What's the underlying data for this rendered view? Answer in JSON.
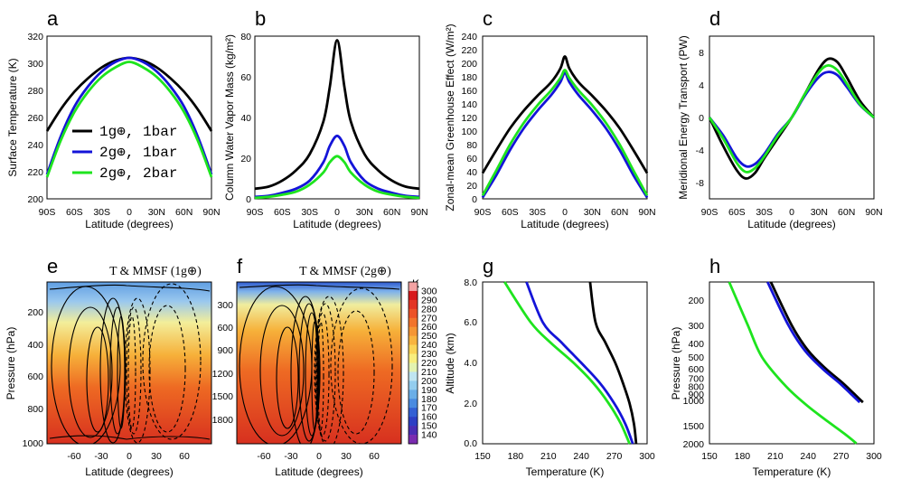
{
  "colors": {
    "black": "#000000",
    "blue": "#1414d8",
    "green": "#1ee41e"
  },
  "legend": [
    "1g⊕, 1bar",
    "2g⊕, 1bar",
    "2g⊕, 2bar"
  ],
  "panels": {
    "a": {
      "label": "a",
      "ylabel": "Surface Temperature (K)",
      "xlabel": "Latitude (degrees)",
      "yticks": [
        "320",
        "300",
        "280",
        "260",
        "240",
        "220",
        "200"
      ]
    },
    "b": {
      "label": "b",
      "ylabel": "Column Water Vapor Mass (kg/m²)",
      "xlabel": "Latitude (degrees)",
      "yticks": [
        "80",
        "60",
        "40",
        "20",
        "0"
      ]
    },
    "c": {
      "label": "c",
      "ylabel": "Zonal-mean Greenhouse Effect (W/m²)",
      "xlabel": "Latitude (degrees)",
      "yticks": [
        "240",
        "220",
        "200",
        "180",
        "160",
        "140",
        "120",
        "100",
        "80",
        "60",
        "40",
        "20",
        "0"
      ]
    },
    "d": {
      "label": "d",
      "ylabel": "Meridional Energy Transport (PW)",
      "xlabel": "Latitude (degrees)",
      "yticks": [
        "8",
        "4",
        "0",
        "-4",
        "-8"
      ]
    },
    "e": {
      "label": "e",
      "title": "T & MMSF (1g⊕)",
      "ylabel": "Pressure (hPa)",
      "xlabel": "Latitude (degrees)",
      "yticks": [
        "200",
        "400",
        "600",
        "800",
        "1000"
      ],
      "xticks": [
        "-60",
        "-30",
        "0",
        "30",
        "60"
      ]
    },
    "f": {
      "label": "f",
      "title": "T & MMSF (2g⊕)",
      "ylabel": "",
      "xlabel": "Latitude (degrees)",
      "yticks": [
        "300",
        "600",
        "900",
        "1200",
        "1500",
        "1800"
      ],
      "xticks": [
        "-60",
        "-30",
        "0",
        "30",
        "60"
      ],
      "cbar_unit": "K",
      "cbar_ticks": [
        "300",
        "290",
        "280",
        "270",
        "260",
        "250",
        "240",
        "230",
        "220",
        "210",
        "200",
        "190",
        "180",
        "170",
        "160",
        "150",
        "140"
      ]
    },
    "g": {
      "label": "g",
      "ylabel": "Altitude (km)",
      "xlabel": "Temperature (K)",
      "yticks": [
        "8.0",
        "6.0",
        "4.0",
        "2.0",
        "0.0"
      ],
      "xticks": [
        "150",
        "180",
        "210",
        "240",
        "270",
        "300"
      ]
    },
    "h": {
      "label": "h",
      "ylabel": "Pressure (hPa)",
      "xlabel": "Temperature (K)",
      "yticks": [
        "200",
        "300",
        "400",
        "500",
        "600",
        "700",
        "800",
        "900",
        "1000",
        "1500",
        "2000"
      ],
      "xticks": [
        "150",
        "180",
        "210",
        "240",
        "270",
        "300"
      ]
    }
  },
  "lat_ticks": [
    "90S",
    "60S",
    "30S",
    "0",
    "30N",
    "60N",
    "90N"
  ],
  "chart_data": [
    {
      "id": "a",
      "type": "line",
      "x": [
        -90,
        -75,
        -60,
        -45,
        -30,
        -15,
        0,
        15,
        30,
        45,
        60,
        75,
        90
      ],
      "ylim": [
        200,
        320
      ],
      "series": [
        {
          "name": "1g⊕, 1bar",
          "values": [
            250,
            266,
            279,
            289,
            297,
            302,
            304,
            302,
            297,
            289,
            279,
            266,
            250
          ]
        },
        {
          "name": "2g⊕, 1bar",
          "values": [
            218,
            246,
            268,
            283,
            294,
            301,
            304,
            301,
            294,
            283,
            268,
            246,
            218
          ]
        },
        {
          "name": "2g⊕, 2bar",
          "values": [
            216,
            243,
            264,
            279,
            290,
            297,
            301,
            297,
            290,
            279,
            264,
            243,
            216
          ]
        }
      ]
    },
    {
      "id": "b",
      "type": "line",
      "x": [
        -90,
        -75,
        -60,
        -45,
        -30,
        -15,
        -8,
        0,
        8,
        15,
        30,
        45,
        60,
        75,
        90
      ],
      "ylim": [
        0,
        80
      ],
      "series": [
        {
          "name": "1g⊕, 1bar",
          "values": [
            5,
            6,
            9,
            14,
            22,
            38,
            55,
            78,
            55,
            38,
            22,
            14,
            9,
            6,
            5
          ]
        },
        {
          "name": "2g⊕, 1bar",
          "values": [
            1,
            1.5,
            3,
            5,
            9,
            18,
            26,
            31,
            26,
            18,
            9,
            5,
            3,
            1.5,
            1
          ]
        },
        {
          "name": "2g⊕, 2bar",
          "values": [
            0.5,
            1,
            2,
            3.5,
            7,
            13,
            18,
            21,
            18,
            13,
            7,
            3.5,
            2,
            1,
            0.5
          ]
        }
      ]
    },
    {
      "id": "c",
      "type": "line",
      "x": [
        -90,
        -75,
        -60,
        -45,
        -30,
        -15,
        -5,
        0,
        5,
        15,
        30,
        45,
        60,
        75,
        90
      ],
      "ylim": [
        0,
        240
      ],
      "series": [
        {
          "name": "1g⊕, 1bar",
          "values": [
            38,
            72,
            104,
            130,
            152,
            172,
            192,
            210,
            192,
            172,
            152,
            130,
            104,
            72,
            38
          ]
        },
        {
          "name": "2g⊕, 1bar",
          "values": [
            2,
            35,
            72,
            104,
            130,
            153,
            172,
            186,
            172,
            153,
            130,
            104,
            72,
            35,
            2
          ]
        },
        {
          "name": "2g⊕, 2bar",
          "values": [
            5,
            42,
            80,
            112,
            138,
            160,
            178,
            190,
            178,
            160,
            138,
            112,
            80,
            42,
            5
          ]
        }
      ]
    },
    {
      "id": "d",
      "type": "line",
      "x": [
        -90,
        -75,
        -60,
        -50,
        -40,
        -30,
        -15,
        0,
        15,
        30,
        40,
        50,
        60,
        75,
        90
      ],
      "ylim": [
        -10,
        10
      ],
      "series": [
        {
          "name": "1g⊕, 1bar",
          "values": [
            0,
            -3.5,
            -6.5,
            -7.5,
            -6.8,
            -5,
            -2.5,
            0,
            3,
            6,
            7.2,
            6.8,
            5,
            2,
            0
          ]
        },
        {
          "name": "2g⊕, 1bar",
          "values": [
            0,
            -2.2,
            -5,
            -6,
            -5.7,
            -4.5,
            -2,
            0,
            2.8,
            5,
            5.6,
            5.2,
            3.8,
            1.5,
            0
          ]
        },
        {
          "name": "2g⊕, 2bar",
          "values": [
            0,
            -2.6,
            -5.6,
            -6.7,
            -6.2,
            -4.8,
            -2.2,
            0,
            3,
            5.6,
            6.4,
            5.8,
            4.2,
            1.6,
            0
          ]
        }
      ]
    },
    {
      "id": "g",
      "type": "line",
      "xlim": [
        150,
        300
      ],
      "ylim": [
        0,
        8
      ],
      "series": [
        {
          "name": "1g⊕, 1bar",
          "x": [
            290,
            288,
            284,
            278,
            271,
            262,
            253,
            248
          ],
          "y": [
            0,
            1,
            2,
            3,
            4,
            5,
            6,
            8
          ]
        },
        {
          "name": "2g⊕, 1bar",
          "x": [
            287,
            280,
            270,
            257,
            240,
            222,
            205,
            190
          ],
          "y": [
            0,
            1,
            2,
            3,
            4,
            5,
            6,
            8
          ]
        },
        {
          "name": "2g⊕, 2bar",
          "x": [
            284,
            276,
            265,
            251,
            233,
            212,
            194,
            170
          ],
          "y": [
            0,
            1,
            2,
            3,
            4,
            5,
            6,
            8
          ]
        }
      ]
    },
    {
      "id": "h",
      "type": "line",
      "xlim": [
        150,
        300
      ],
      "ylim": [
        150,
        2000
      ],
      "series": [
        {
          "name": "1g⊕, 1bar",
          "x": [
            290,
            282,
            271,
            256,
            240,
            225,
            206
          ],
          "y": [
            1030,
            900,
            750,
            600,
            450,
            300,
            150
          ]
        },
        {
          "name": "2g⊕, 1bar",
          "x": [
            287,
            279,
            268,
            253,
            237,
            222,
            203
          ],
          "y": [
            1030,
            900,
            750,
            600,
            450,
            300,
            150
          ]
        },
        {
          "name": "2g⊕, 2bar",
          "x": [
            284,
            273,
            258,
            240,
            220,
            198,
            185,
            168
          ],
          "y": [
            1990,
            1700,
            1400,
            1100,
            800,
            500,
            300,
            150
          ]
        }
      ]
    }
  ]
}
